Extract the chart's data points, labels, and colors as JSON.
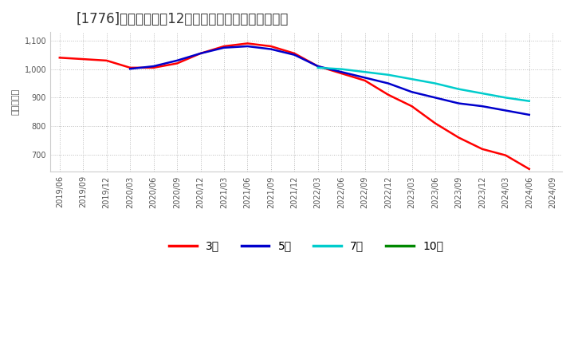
{
  "title": "[1776]　当期純利益12か月移動合計の平均値の推移",
  "ylabel": "（百万円）",
  "ylim": [
    640,
    1130
  ],
  "yticks": [
    700,
    800,
    900,
    1000,
    1100
  ],
  "background_color": "#ffffff",
  "grid_color": "#bbbbbb",
  "series": {
    "3年": {
      "color": "#ff0000",
      "dates": [
        "2019/06",
        "2019/09",
        "2019/12",
        "2020/03",
        "2020/06",
        "2020/09",
        "2020/12",
        "2021/03",
        "2021/06",
        "2021/09",
        "2021/12",
        "2022/03",
        "2022/06",
        "2022/09",
        "2022/12",
        "2023/03",
        "2023/06",
        "2023/09",
        "2023/12",
        "2024/03",
        "2024/06"
      ],
      "values": [
        1040,
        1035,
        1030,
        1005,
        1005,
        1020,
        1055,
        1080,
        1090,
        1080,
        1055,
        1010,
        985,
        960,
        910,
        870,
        810,
        760,
        720,
        698,
        650
      ]
    },
    "5年": {
      "color": "#0000cc",
      "dates": [
        "2020/03",
        "2020/06",
        "2020/09",
        "2020/12",
        "2021/03",
        "2021/06",
        "2021/09",
        "2021/12",
        "2022/03",
        "2022/06",
        "2022/09",
        "2022/12",
        "2023/03",
        "2023/06",
        "2023/09",
        "2023/12",
        "2024/03",
        "2024/06"
      ],
      "values": [
        1001,
        1010,
        1030,
        1055,
        1075,
        1080,
        1070,
        1050,
        1010,
        990,
        970,
        950,
        920,
        900,
        880,
        870,
        855,
        840
      ]
    },
    "7年": {
      "color": "#00cccc",
      "dates": [
        "2022/03",
        "2022/06",
        "2022/09",
        "2022/12",
        "2023/03",
        "2023/06",
        "2023/09",
        "2023/12",
        "2024/03",
        "2024/06"
      ],
      "values": [
        1005,
        1000,
        990,
        980,
        965,
        950,
        930,
        915,
        900,
        888
      ]
    },
    "10年": {
      "color": "#008800",
      "dates": [],
      "values": []
    }
  },
  "legend_labels": [
    "3年",
    "5年",
    "7年",
    "10年"
  ],
  "legend_colors": [
    "#ff0000",
    "#0000cc",
    "#00cccc",
    "#008800"
  ],
  "all_dates": [
    "2019/06",
    "2019/09",
    "2019/12",
    "2020/03",
    "2020/06",
    "2020/09",
    "2020/12",
    "2021/03",
    "2021/06",
    "2021/09",
    "2021/12",
    "2022/03",
    "2022/06",
    "2022/09",
    "2022/12",
    "2023/03",
    "2023/06",
    "2023/09",
    "2023/12",
    "2024/03",
    "2024/06",
    "2024/09"
  ],
  "title_fontsize": 12,
  "tick_fontsize": 7,
  "label_fontsize": 8,
  "linewidth": 1.8
}
